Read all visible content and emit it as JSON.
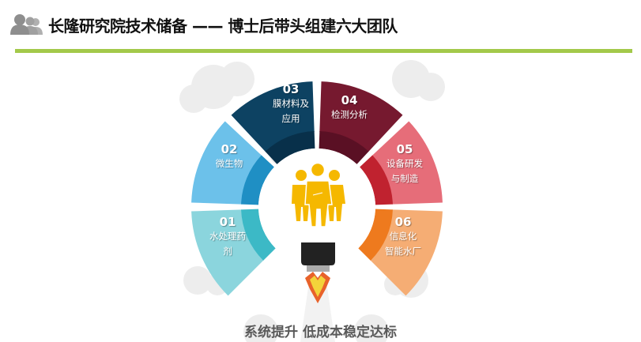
{
  "header": {
    "title": "长隆研究院技术储备 —— 博士后带头组建六大团队",
    "icon": "users-icon",
    "rule_color": "#a3c94a"
  },
  "teams": [
    {
      "number": "01",
      "label_lines": [
        "水处理药",
        "剂"
      ],
      "color": "#8bd5dd",
      "inner_color": "#3cb9c6"
    },
    {
      "number": "02",
      "label_lines": [
        "微生物"
      ],
      "color": "#6cc1ea",
      "inner_color": "#1f8fc4"
    },
    {
      "number": "03",
      "label_lines": [
        "膜材料及",
        "应用"
      ],
      "color": "#0d4262",
      "inner_color": "#08304a"
    },
    {
      "number": "04",
      "label_lines": [
        "检测分析"
      ],
      "color": "#76192f",
      "inner_color": "#5a1024"
    },
    {
      "number": "05",
      "label_lines": [
        "设备研发",
        "与制造"
      ],
      "color": "#e66d79",
      "inner_color": "#c0222f"
    },
    {
      "number": "06",
      "label_lines": [
        "信息化",
        "智能水厂"
      ],
      "color": "#f5ad74",
      "inner_color": "#ee7a1e"
    }
  ],
  "center_icon": "business-team-icon",
  "rocket_icon": "rocket-icon",
  "caption": "系统提升 低成本稳定达标"
}
